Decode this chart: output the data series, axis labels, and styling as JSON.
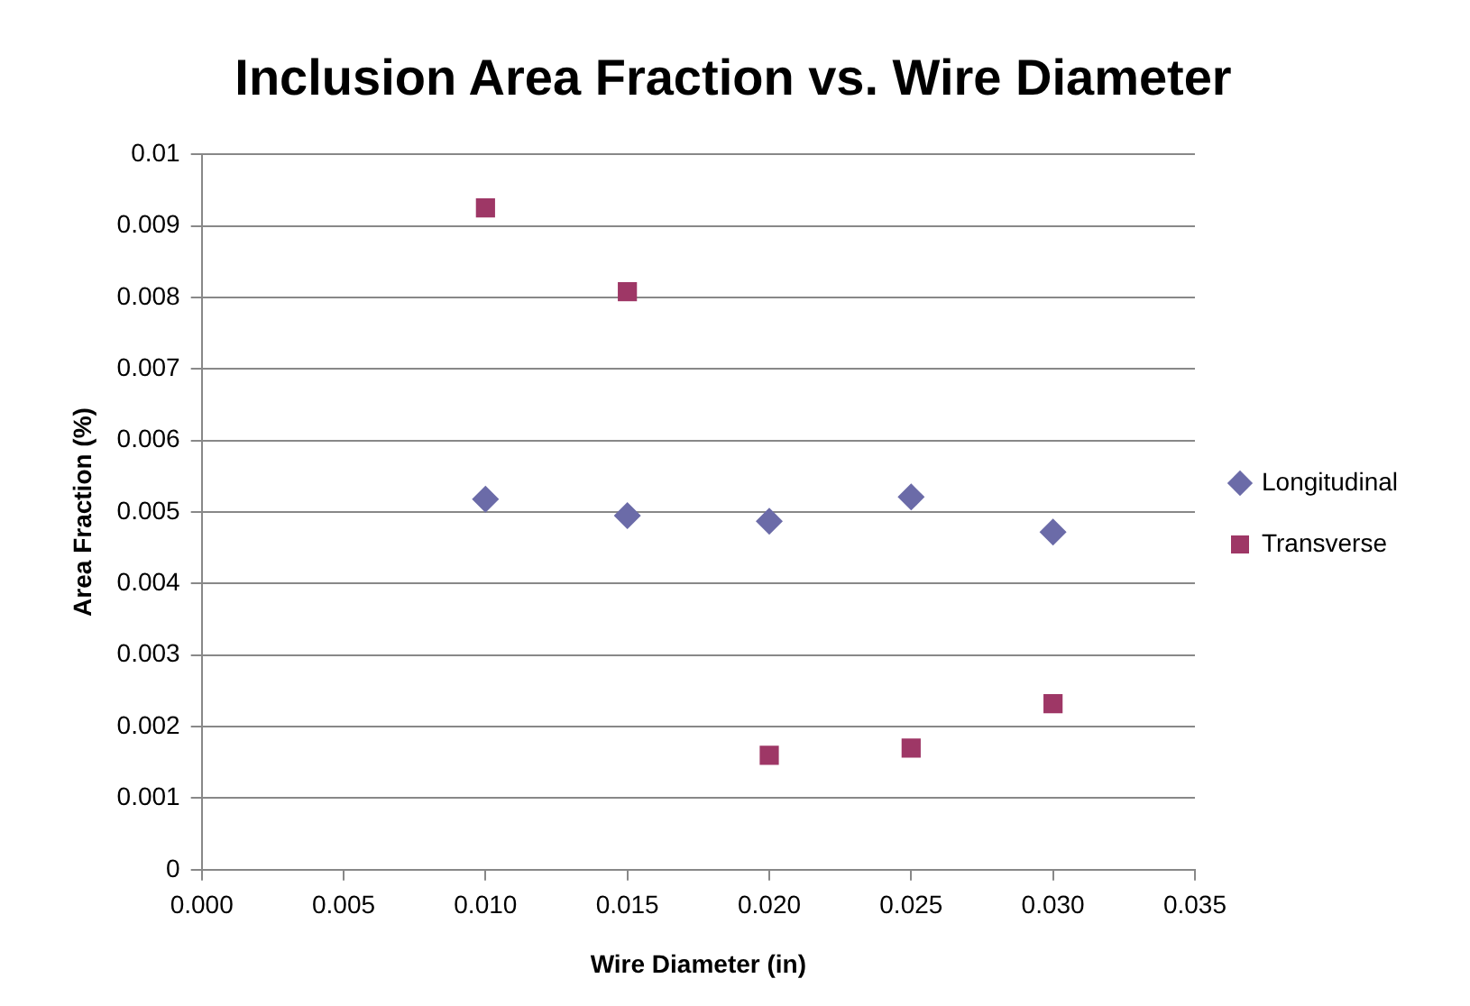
{
  "chart_data": {
    "type": "scatter",
    "title": "Inclusion Area Fraction vs. Wire Diameter",
    "xlabel": "Wire Diameter (in)",
    "ylabel": "Area Fraction (%)",
    "x": [
      0.01,
      0.015,
      0.02,
      0.025,
      0.03
    ],
    "series": [
      {
        "name": "Longitudinal",
        "color": "#6b6ba8",
        "marker": "diamond",
        "values": [
          0.00518,
          0.00495,
          0.00487,
          0.00521,
          0.00472
        ]
      },
      {
        "name": "Transverse",
        "color": "#9e3766",
        "marker": "square",
        "values": [
          0.00925,
          0.00808,
          0.0016,
          0.0017,
          0.00232
        ]
      }
    ],
    "xlim": [
      0,
      0.035
    ],
    "xticks": [
      {
        "value": 0,
        "label": "0.000"
      },
      {
        "value": 0.005,
        "label": "0.005"
      },
      {
        "value": 0.01,
        "label": "0.010"
      },
      {
        "value": 0.015,
        "label": "0.015"
      },
      {
        "value": 0.02,
        "label": "0.020"
      },
      {
        "value": 0.025,
        "label": "0.025"
      },
      {
        "value": 0.03,
        "label": "0.030"
      },
      {
        "value": 0.035,
        "label": "0.035"
      }
    ],
    "ylim": [
      0,
      0.01
    ],
    "yticks": [
      0,
      0.001,
      0.002,
      0.003,
      0.004,
      0.005,
      0.006,
      0.007,
      0.008,
      0.009,
      0.01
    ],
    "grid": "y",
    "legend": "right"
  }
}
